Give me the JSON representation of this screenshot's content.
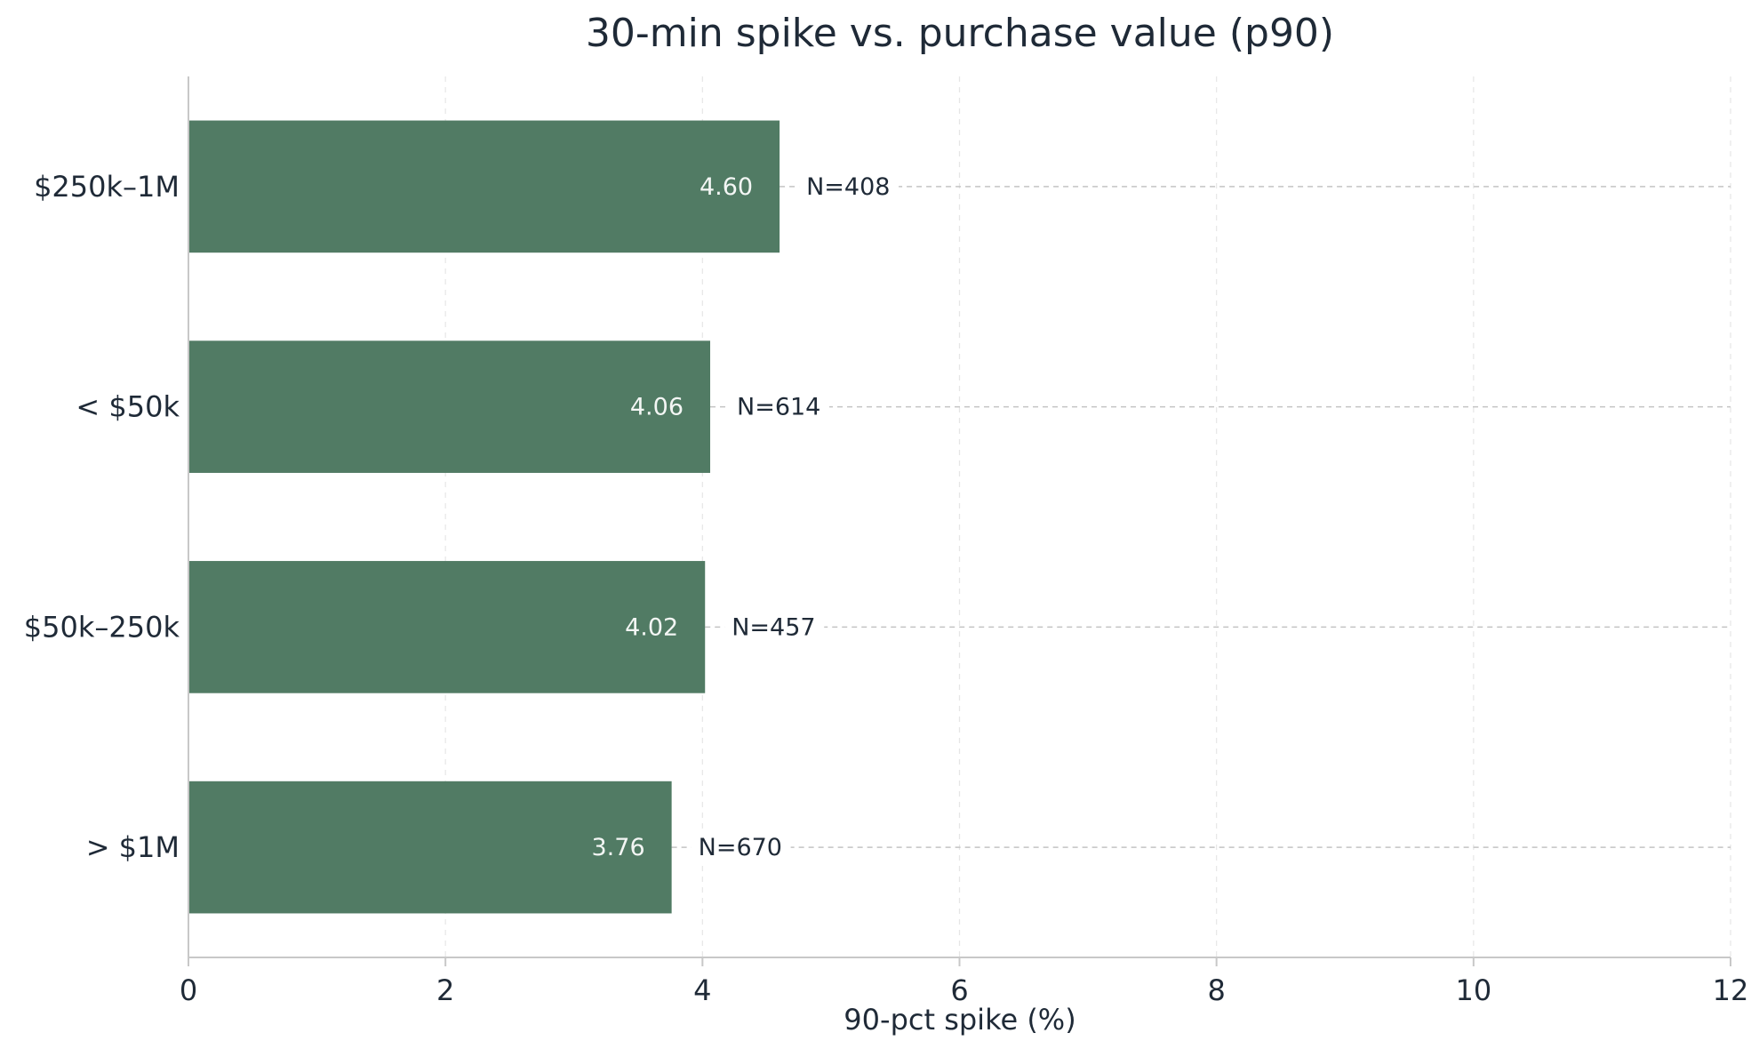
{
  "chart_data": {
    "type": "bar",
    "orientation": "horizontal",
    "title": "30-min spike vs. purchase value (p90)",
    "xlabel": "90-pct spike (%)",
    "ylabel": "",
    "xlim": [
      0,
      12
    ],
    "xticks": [
      0,
      2,
      4,
      6,
      8,
      10,
      12
    ],
    "categories": [
      "$250k–1M",
      "< $50k",
      "$50k–250k",
      "> $1M"
    ],
    "values": [
      4.6,
      4.06,
      4.02,
      3.76
    ],
    "value_labels": [
      "4.60",
      "4.06",
      "4.02",
      "3.76"
    ],
    "n_labels": [
      "N=408",
      "N=614",
      "N=457",
      "N=670"
    ],
    "bar_color": "#517b64",
    "grid": true
  }
}
